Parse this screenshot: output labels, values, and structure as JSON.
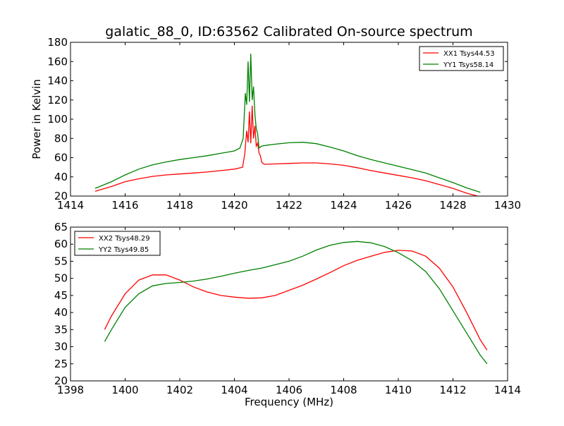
{
  "chart_data": [
    {
      "type": "line",
      "title": "galatic_88_0, ID:63562 Calibrated On-source spectrum",
      "xlabel": "",
      "ylabel": "Power in Kelvin",
      "xlim": [
        1414,
        1430
      ],
      "ylim": [
        20,
        180
      ],
      "xticks": [
        1414,
        1416,
        1418,
        1420,
        1422,
        1424,
        1426,
        1428,
        1430
      ],
      "yticks": [
        20,
        40,
        60,
        80,
        100,
        120,
        140,
        160,
        180
      ],
      "grid": false,
      "legend_position": "top-right",
      "series": [
        {
          "name": "XX1 Tsys44.53",
          "color": "#ff0000",
          "x": [
            1414.9,
            1415.5,
            1416.0,
            1416.5,
            1417.0,
            1417.5,
            1418.0,
            1418.5,
            1419.0,
            1419.5,
            1420.0,
            1420.3,
            1420.38,
            1420.45,
            1420.5,
            1420.55,
            1420.6,
            1420.65,
            1420.7,
            1420.75,
            1420.8,
            1420.85,
            1420.9,
            1420.95,
            1421.0,
            1421.1,
            1421.5,
            1422.0,
            1422.5,
            1423.0,
            1423.5,
            1424.0,
            1424.5,
            1425.0,
            1425.5,
            1426.0,
            1426.5,
            1427.0,
            1427.5,
            1428.0,
            1428.5,
            1428.9
          ],
          "values": [
            25,
            30,
            35,
            38,
            40.5,
            42,
            43,
            44,
            45,
            46.5,
            48,
            50,
            64,
            88,
            76,
            108,
            75,
            114,
            80,
            93,
            72,
            75,
            65,
            62,
            55,
            53,
            53.5,
            54,
            54.5,
            54.5,
            53.5,
            52,
            49.5,
            46.5,
            44,
            41.5,
            39,
            36,
            32,
            28,
            23,
            20
          ]
        },
        {
          "name": "YY1 Tsys58.14",
          "color": "#008000",
          "x": [
            1414.9,
            1415.5,
            1416.0,
            1416.5,
            1417.0,
            1417.5,
            1418.0,
            1418.5,
            1419.0,
            1419.5,
            1420.0,
            1420.2,
            1420.32,
            1420.4,
            1420.45,
            1420.5,
            1420.55,
            1420.6,
            1420.65,
            1420.7,
            1420.75,
            1420.8,
            1420.85,
            1420.9,
            1421.0,
            1421.2,
            1421.5,
            1422.0,
            1422.5,
            1423.0,
            1423.5,
            1424.0,
            1424.5,
            1425.0,
            1425.5,
            1426.0,
            1426.5,
            1427.0,
            1427.5,
            1428.0,
            1428.5,
            1429.0
          ],
          "values": [
            28,
            35,
            42,
            48,
            52.5,
            55.5,
            58,
            60,
            62,
            64.5,
            67,
            70,
            80,
            127,
            115,
            160,
            118,
            168,
            120,
            134,
            105,
            90,
            85,
            70,
            72,
            73,
            74,
            75.5,
            76,
            74.5,
            71,
            67,
            62,
            58,
            54.5,
            51,
            47.5,
            44,
            39,
            34,
            28.5,
            24
          ]
        }
      ]
    },
    {
      "type": "line",
      "title": "",
      "xlabel": "Frequency (MHz)",
      "ylabel": "",
      "xlim": [
        1398,
        1414
      ],
      "ylim": [
        20,
        65
      ],
      "xticks": [
        1398,
        1400,
        1402,
        1404,
        1406,
        1408,
        1410,
        1412,
        1414
      ],
      "yticks": [
        20,
        25,
        30,
        35,
        40,
        45,
        50,
        55,
        60,
        65
      ],
      "grid": false,
      "legend_position": "top-left",
      "series": [
        {
          "name": "XX2 Tsys48.29",
          "color": "#ff0000",
          "x": [
            1399.25,
            1399.5,
            1400.0,
            1400.5,
            1401.0,
            1401.5,
            1402.0,
            1402.5,
            1403.0,
            1403.5,
            1404.0,
            1404.5,
            1405.0,
            1405.5,
            1406.0,
            1406.5,
            1407.0,
            1407.5,
            1408.0,
            1408.5,
            1409.0,
            1409.5,
            1410.0,
            1410.5,
            1411.0,
            1411.5,
            1412.0,
            1412.5,
            1413.0,
            1413.25
          ],
          "values": [
            35,
            39,
            45.5,
            49.5,
            51,
            51,
            49.5,
            47.5,
            46,
            45,
            44.5,
            44.2,
            44.3,
            45,
            46.5,
            48,
            49.8,
            51.7,
            53.7,
            55.3,
            56.5,
            57.6,
            58.2,
            58,
            56.5,
            53,
            47.5,
            40,
            32,
            29
          ]
        },
        {
          "name": "YY2 Tsys49.85",
          "color": "#008000",
          "x": [
            1399.25,
            1399.5,
            1400.0,
            1400.5,
            1401.0,
            1401.5,
            1402.0,
            1402.5,
            1403.0,
            1403.5,
            1404.0,
            1404.5,
            1405.0,
            1405.5,
            1406.0,
            1406.5,
            1407.0,
            1407.5,
            1408.0,
            1408.5,
            1409.0,
            1409.5,
            1410.0,
            1410.5,
            1411.0,
            1411.5,
            1412.0,
            1412.5,
            1413.0,
            1413.25
          ],
          "values": [
            31.5,
            35,
            41.5,
            45.5,
            47.8,
            48.5,
            48.8,
            49.2,
            49.8,
            50.6,
            51.5,
            52.3,
            53,
            54,
            55,
            56.5,
            58.3,
            59.7,
            60.5,
            60.8,
            60.4,
            59.3,
            57.5,
            55.2,
            52,
            47,
            40.5,
            34,
            27.5,
            25
          ]
        }
      ]
    }
  ]
}
